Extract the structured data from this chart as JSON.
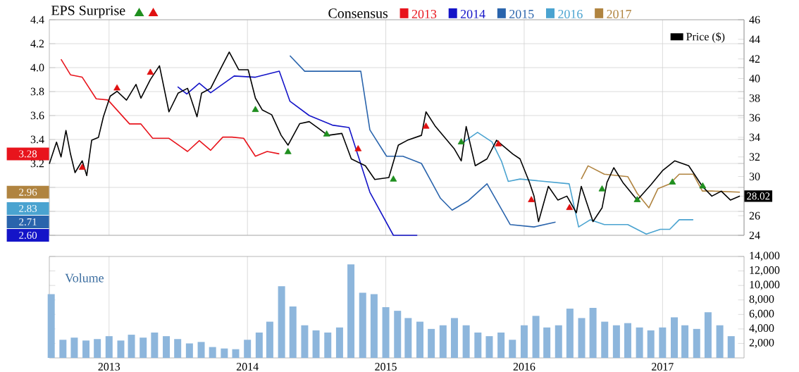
{
  "chart_data": [
    {
      "type": "line",
      "title": "EPS Surprise",
      "legend_title": "Consensus",
      "legend": "top",
      "grid": true,
      "tick_labels": "y",
      "xlim": [
        "2012-07-27",
        "2017-08-04"
      ],
      "xticks": [
        {
          "value": "2013-01-01",
          "label": null
        },
        {
          "value": "2014-01-01",
          "label": null
        },
        {
          "value": "2015-01-01",
          "label": null
        },
        {
          "value": "2016-01-01",
          "label": null
        },
        {
          "value": "2017-01-01",
          "label": null
        }
      ],
      "ylim": [
        2.6,
        4.4
      ],
      "yticks": [
        {
          "value": 2.6,
          "label": null
        },
        {
          "value": 2.8,
          "label": null
        },
        {
          "value": 3.0,
          "label": null
        },
        3.2,
        3.4,
        3.6,
        3.8,
        {
          "value": 4.0,
          "label": "4.0"
        },
        4.2,
        4.4
      ],
      "y2lim": [
        24,
        46
      ],
      "y2ticks": [
        24,
        26,
        {
          "value": 28,
          "label": null
        },
        30,
        32,
        34,
        36,
        38,
        40,
        42,
        44,
        46
      ],
      "series": [
        {
          "name": "2013",
          "color": "#e8141c",
          "x": [
            "2012-08-27",
            "2012-09-21",
            "2012-10-22",
            "2012-11-28",
            "2012-12-29",
            "2013-02-24",
            "2013-03-26",
            "2013-04-26",
            "2013-06-08",
            "2013-07-27",
            "2013-08-27",
            "2013-09-26",
            "2013-10-28",
            "2013-11-21",
            "2013-12-22",
            "2014-01-22",
            "2014-02-22",
            "2014-03-26"
          ],
          "values": [
            4.07,
            3.94,
            3.92,
            3.74,
            3.73,
            3.53,
            3.53,
            3.41,
            3.41,
            3.3,
            3.39,
            3.31,
            3.42,
            3.42,
            3.41,
            3.26,
            3.3,
            3.28
          ]
        },
        {
          "name": "2014",
          "color": "#1414c8",
          "x": [
            "2013-07-01",
            "2013-07-25",
            "2013-08-27",
            "2013-09-26",
            "2013-11-27",
            "2014-01-22",
            "2014-03-26",
            "2014-04-23",
            "2014-06-13",
            "2014-08-13",
            "2014-09-26",
            "2014-11-20",
            "2015-01-21",
            "2015-02-27",
            "2015-03-25"
          ],
          "values": [
            3.84,
            3.78,
            3.87,
            3.79,
            3.93,
            3.92,
            3.97,
            3.72,
            3.6,
            3.52,
            3.5,
            2.96,
            2.6,
            2.6,
            2.6
          ]
        },
        {
          "name": "2015",
          "color": "#2a64ac",
          "x": [
            "2014-04-23",
            "2014-06-01",
            "2014-08-01",
            "2014-10-27",
            "2014-11-20",
            "2015-01-03",
            "2015-02-15",
            "2015-04-05",
            "2015-05-25",
            "2015-06-25",
            "2015-08-07",
            "2015-09-25",
            "2015-11-25",
            "2016-01-27",
            "2016-03-24"
          ],
          "values": [
            4.1,
            3.97,
            3.97,
            3.97,
            3.48,
            3.26,
            3.26,
            3.2,
            2.91,
            2.81,
            2.89,
            3.03,
            2.69,
            2.67,
            2.71
          ]
        },
        {
          "name": "2016",
          "color": "#4aa3d0",
          "x": [
            "2015-07-26",
            "2015-08-31",
            "2015-10-08",
            "2015-11-02",
            "2015-11-20",
            "2015-12-21",
            "2016-04-29",
            "2016-05-24",
            "2016-06-24",
            "2016-07-31",
            "2016-10-01",
            "2016-11-19",
            "2016-12-26",
            "2017-01-20",
            "2017-02-14",
            "2017-03-23"
          ],
          "values": [
            3.38,
            3.46,
            3.38,
            3.22,
            3.05,
            3.07,
            3.03,
            2.67,
            2.73,
            2.69,
            2.69,
            2.61,
            2.65,
            2.65,
            2.73,
            2.73
          ]
        },
        {
          "name": "2017",
          "color": "#b08440",
          "x": [
            "2016-05-31",
            "2016-06-18",
            "2016-07-31",
            "2016-10-01",
            "2016-10-26",
            "2016-11-26",
            "2016-12-20",
            "2017-01-20",
            "2017-02-14",
            "2017-03-23",
            "2017-04-16",
            "2017-05-11",
            "2017-07-24"
          ],
          "values": [
            3.07,
            3.18,
            3.11,
            3.09,
            2.95,
            2.83,
            2.99,
            3.03,
            3.11,
            3.11,
            2.97,
            2.97,
            2.96
          ]
        },
        {
          "name": "Price ($)",
          "color": "#000000",
          "axis": "y2",
          "x": [
            "2012-07-27",
            "2012-08-15",
            "2012-08-27",
            "2012-09-09",
            "2012-09-21",
            "2012-10-03",
            "2012-10-22",
            "2012-11-03",
            "2012-11-16",
            "2012-12-04",
            "2012-12-17",
            "2013-01-04",
            "2013-01-22",
            "2013-02-16",
            "2013-03-13",
            "2013-03-26",
            "2013-04-20",
            "2013-05-14",
            "2013-06-08",
            "2013-07-02",
            "2013-07-27",
            "2013-08-21",
            "2013-09-02",
            "2013-09-26",
            "2013-10-21",
            "2013-11-14",
            "2013-12-09",
            "2014-01-03",
            "2014-01-22",
            "2014-02-09",
            "2014-03-06",
            "2014-03-31",
            "2014-04-18",
            "2014-05-19",
            "2014-06-13",
            "2014-07-08",
            "2014-08-01",
            "2014-09-07",
            "2014-10-02",
            "2014-11-08",
            "2014-12-03",
            "2015-01-09",
            "2015-02-03",
            "2015-02-27",
            "2015-04-05",
            "2015-04-17",
            "2015-05-12",
            "2015-07-01",
            "2015-07-19",
            "2015-08-01",
            "2015-08-25",
            "2015-09-25",
            "2015-10-20",
            "2015-12-02",
            "2015-12-21",
            "2016-01-15",
            "2016-01-27",
            "2016-02-08",
            "2016-03-05",
            "2016-03-30",
            "2016-04-23",
            "2016-05-18",
            "2016-05-31",
            "2016-07-01",
            "2016-07-25",
            "2016-08-07",
            "2016-08-25",
            "2016-09-18",
            "2016-10-26",
            "2016-12-02",
            "2017-01-01",
            "2017-02-02",
            "2017-03-11",
            "2017-04-16",
            "2017-05-11",
            "2017-06-05",
            "2017-06-29",
            "2017-07-24"
          ],
          "values": [
            31.3,
            33.5,
            32.0,
            34.7,
            32.3,
            30.4,
            31.6,
            30.1,
            33.7,
            34.0,
            36.1,
            38.2,
            38.7,
            37.8,
            39.4,
            38.0,
            39.9,
            41.3,
            36.6,
            38.5,
            39.0,
            36.1,
            38.5,
            39.0,
            40.9,
            42.7,
            40.9,
            40.9,
            38.0,
            36.8,
            36.3,
            34.2,
            33.2,
            35.4,
            35.6,
            34.9,
            34.2,
            34.4,
            31.8,
            31.1,
            29.7,
            29.9,
            33.2,
            33.7,
            34.2,
            36.6,
            35.1,
            32.8,
            31.6,
            35.1,
            31.1,
            31.8,
            33.7,
            32.3,
            31.8,
            29.4,
            28.0,
            25.4,
            29.0,
            27.6,
            28.0,
            26.3,
            29.0,
            25.4,
            26.8,
            29.4,
            30.9,
            29.4,
            27.6,
            29.2,
            30.6,
            31.6,
            31.1,
            29.0,
            28.0,
            28.5,
            27.6,
            28.0
          ]
        },
        {
          "type": "scatter",
          "color": "#1f8f1f",
          "marker": "triangle",
          "axis": "y2",
          "x": [
            "2014-01-22",
            "2014-04-18",
            "2014-07-29",
            "2015-01-21",
            "2015-07-19",
            "2016-07-25",
            "2016-10-26",
            "2017-01-27",
            "2017-04-17"
          ],
          "values": [
            36.8,
            32.5,
            34.3,
            29.7,
            33.5,
            28.7,
            27.6,
            29.4,
            29.0
          ]
        },
        {
          "type": "scatter",
          "color": "#e01010",
          "marker": "triangle",
          "axis": "y2",
          "x": [
            "2012-10-22",
            "2013-01-22",
            "2013-04-20",
            "2014-10-20",
            "2015-04-17",
            "2015-10-25",
            "2016-01-20",
            "2016-04-30"
          ],
          "values": [
            30.9,
            39.0,
            40.6,
            32.8,
            35.1,
            33.3,
            27.6,
            26.8
          ]
        }
      ],
      "annotations": [
        "3.28",
        "2.60",
        "2.71",
        "2.83",
        "2.96",
        "28.02"
      ]
    },
    {
      "type": "bar",
      "title": "Volume",
      "color": "#8db6dc",
      "grid": "x",
      "xlim": [
        "2012-07-27",
        "2017-08-04"
      ],
      "xticks": [
        {
          "value": "2013-01-01",
          "label": "2013"
        },
        {
          "value": "2014-01-01",
          "label": "2014"
        },
        {
          "value": "2015-01-01",
          "label": "2015"
        },
        {
          "value": "2016-01-01",
          "label": "2016"
        },
        {
          "value": "2017-01-01",
          "label": "2017"
        }
      ],
      "ylim": [
        0,
        14000
      ],
      "yticks": [
        {
          "value": 2000,
          "label": "2,000"
        },
        {
          "value": 4000,
          "label": "4,000"
        },
        {
          "value": 6000,
          "label": "6,000"
        },
        {
          "value": 8000,
          "label": "8,000"
        },
        {
          "value": 10000,
          "label": "10,000"
        },
        {
          "value": 12000,
          "label": "12,000"
        },
        {
          "value": 14000,
          "label": "14,000"
        }
      ],
      "x": [
        "2012-08-01",
        "2012-09-01",
        "2012-10-01",
        "2012-11-01",
        "2012-12-01",
        "2013-01-01",
        "2013-02-01",
        "2013-03-01",
        "2013-04-01",
        "2013-05-01",
        "2013-06-01",
        "2013-07-01",
        "2013-08-01",
        "2013-09-01",
        "2013-10-01",
        "2013-11-01",
        "2013-12-01",
        "2014-01-01",
        "2014-02-01",
        "2014-03-01",
        "2014-04-01",
        "2014-05-01",
        "2014-06-01",
        "2014-07-01",
        "2014-08-01",
        "2014-09-01",
        "2014-10-01",
        "2014-11-01",
        "2014-12-01",
        "2015-01-01",
        "2015-02-01",
        "2015-03-01",
        "2015-04-01",
        "2015-05-01",
        "2015-06-01",
        "2015-07-01",
        "2015-08-01",
        "2015-09-01",
        "2015-10-01",
        "2015-11-01",
        "2015-12-01",
        "2016-01-01",
        "2016-02-01",
        "2016-03-01",
        "2016-04-01",
        "2016-05-01",
        "2016-06-01",
        "2016-07-01",
        "2016-08-01",
        "2016-09-01",
        "2016-10-01",
        "2016-11-01",
        "2016-12-01",
        "2017-01-01",
        "2017-02-01",
        "2017-03-01",
        "2017-04-01",
        "2017-05-01",
        "2017-06-01",
        "2017-07-01"
      ],
      "values": [
        8800,
        2500,
        2800,
        2400,
        2600,
        3000,
        2400,
        3200,
        2800,
        3500,
        3000,
        2600,
        2000,
        2200,
        1500,
        1300,
        1200,
        2500,
        3500,
        5000,
        9900,
        7100,
        4500,
        3800,
        3500,
        4200,
        12900,
        9000,
        8800,
        7000,
        6500,
        5500,
        5000,
        4000,
        4500,
        5500,
        4500,
        3500,
        3000,
        3500,
        2500,
        4500,
        5800,
        4200,
        4500,
        6800,
        5500,
        6900,
        5000,
        4500,
        4800,
        4200,
        3800,
        4200,
        5600,
        4500,
        4000,
        6300,
        4500,
        3000
      ]
    }
  ]
}
